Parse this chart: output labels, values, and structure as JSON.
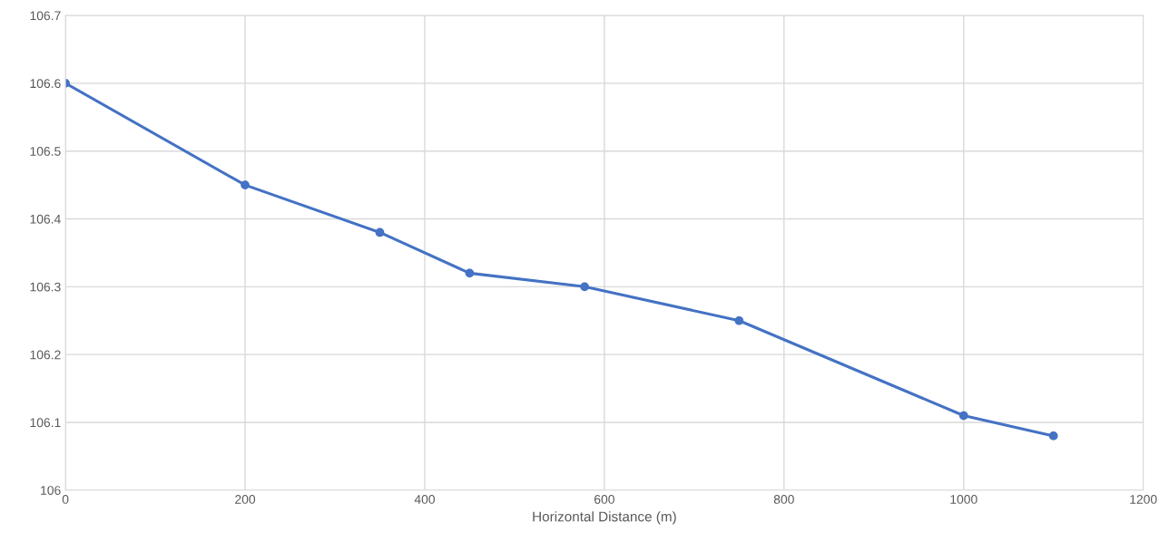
{
  "chart_data": {
    "type": "line",
    "xlabel": "Horizontal Distance (m)",
    "x": [
      0,
      200,
      350,
      450,
      578,
      750,
      1000,
      1100
    ],
    "series": [
      {
        "color": "#4472c4",
        "values": [
          106.6,
          106.45,
          106.38,
          106.32,
          106.3,
          106.25,
          106.11,
          106.08
        ]
      }
    ],
    "xlim": [
      0,
      1200
    ],
    "xticks": [
      0,
      200,
      400,
      600,
      800,
      1000,
      1200
    ],
    "ylim": [
      106,
      106.7
    ],
    "yticks": [
      106,
      106.1,
      106.2,
      106.3,
      106.4,
      106.5,
      106.6,
      106.7
    ],
    "grid": true,
    "marker": "circle",
    "line_style": "solid"
  }
}
